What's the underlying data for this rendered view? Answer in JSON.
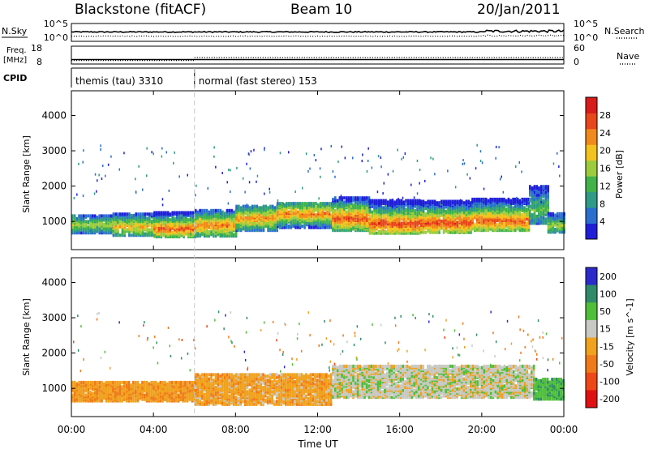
{
  "header": {
    "station": "Blackstone (fitACF)",
    "beam": "Beam 10",
    "date": "20/Jan/2011"
  },
  "chart_data": [
    {
      "type": "line",
      "panel": "noise",
      "left_label": "N.Sky",
      "right_label": "N.Search",
      "y_left_ticks": [
        "10^5",
        "10^0"
      ],
      "y_right_ticks": [
        "10^5",
        "10^0"
      ],
      "series": [
        {
          "name": "N.Sky",
          "style": "solid"
        },
        {
          "name": "N.Search",
          "style": "dotted"
        }
      ]
    },
    {
      "type": "line",
      "panel": "frequency",
      "left_label_line1": "Freq.",
      "left_label_line2": "[MHz]",
      "right_label": "Nave",
      "y_left_ticks": [
        "18",
        "8"
      ],
      "y_right_ticks": [
        "60",
        "0"
      ],
      "series": [
        {
          "name": "Freq.",
          "style": "solid",
          "segments": [
            {
              "x": [
                "00:00",
                "24:00"
              ],
              "y": 10.5
            }
          ]
        },
        {
          "name": "Nave",
          "style": "dotted",
          "segments": [
            {
              "x": [
                "00:00",
                "06:00"
              ],
              "y": 12
            },
            {
              "x": [
                "06:00",
                "24:00"
              ],
              "y": 22
            }
          ]
        }
      ]
    },
    {
      "type": "table",
      "panel": "cpid",
      "label": "CPID",
      "programs": [
        {
          "name": "themis (tau) 3310",
          "start": "00:00"
        },
        {
          "name": "normal (fast stereo) 153",
          "start": "06:00"
        }
      ]
    },
    {
      "type": "heatmap",
      "panel": "power",
      "ylabel": "Slant Range [km]",
      "y_ticks": [
        1000,
        2000,
        3000,
        4000
      ],
      "ylim": [
        200,
        4700
      ],
      "colorbar_label": "Power [dB]",
      "colorbar_ticks": [
        4,
        8,
        12,
        16,
        20,
        24,
        28
      ],
      "colorbar_range": [
        0,
        32
      ],
      "colorscale": [
        "#1f1fd8",
        "#2a6fd0",
        "#2f9a86",
        "#3fb34a",
        "#9ccc3c",
        "#f4c21f",
        "#f08a1c",
        "#e8461b",
        "#d81b1b"
      ],
      "scatter_bands": [
        {
          "t": [
            0.0,
            2.0
          ],
          "lo": 630,
          "hi": 1150,
          "core": 870,
          "peak": 17
        },
        {
          "t": [
            2.0,
            4.0
          ],
          "lo": 560,
          "hi": 1200,
          "core": 820,
          "peak": 22
        },
        {
          "t": [
            4.0,
            6.0
          ],
          "lo": 520,
          "hi": 1230,
          "core": 760,
          "peak": 27
        },
        {
          "t": [
            6.0,
            8.0
          ],
          "lo": 540,
          "hi": 1300,
          "core": 850,
          "peak": 25
        },
        {
          "t": [
            8.0,
            10.0
          ],
          "lo": 700,
          "hi": 1420,
          "core": 1050,
          "peak": 25
        },
        {
          "t": [
            10.0,
            12.7
          ],
          "lo": 780,
          "hi": 1480,
          "core": 1180,
          "peak": 25
        },
        {
          "t": [
            12.7,
            14.5
          ],
          "lo": 700,
          "hi": 1650,
          "core": 1050,
          "peak": 28
        },
        {
          "t": [
            14.5,
            17.0
          ],
          "lo": 620,
          "hi": 1550,
          "core": 900,
          "peak": 29
        },
        {
          "t": [
            17.0,
            19.5
          ],
          "lo": 640,
          "hi": 1550,
          "core": 920,
          "peak": 29
        },
        {
          "t": [
            19.5,
            22.3
          ],
          "lo": 700,
          "hi": 1620,
          "core": 980,
          "peak": 27
        },
        {
          "t": [
            22.3,
            23.2
          ],
          "lo": 900,
          "hi": 1950,
          "core": 1300,
          "peak": 13
        },
        {
          "t": [
            23.2,
            24.0
          ],
          "lo": 650,
          "hi": 1200,
          "core": 850,
          "peak": 17
        }
      ]
    },
    {
      "type": "heatmap",
      "panel": "velocity",
      "ylabel": "Slant Range [km]",
      "y_ticks": [
        1000,
        2000,
        3000,
        4000
      ],
      "ylim": [
        200,
        4700
      ],
      "xlabel": "Time UT",
      "x_ticks": [
        "00:00",
        "04:00",
        "08:00",
        "12:00",
        "16:00",
        "20:00",
        "00:00"
      ],
      "xlim_hours": [
        0,
        24
      ],
      "colorbar_label": "Velocity [m s^-1]",
      "colorbar_ticks": [
        "200",
        "100",
        "50",
        "15",
        "-15",
        "-50",
        "-100",
        "-200"
      ],
      "colorscale": [
        "#2b2bcc",
        "#2f8a6a",
        "#4fbf3a",
        "#8fd64a",
        "#c8c8c4",
        "#f0a21e",
        "#f07a1a",
        "#ee4818",
        "#e01010"
      ],
      "scatter_bands": [
        {
          "t": [
            0.0,
            6.0
          ],
          "lo": 600,
          "hi": 1150,
          "velocity": -40
        },
        {
          "t": [
            6.0,
            12.7
          ],
          "lo": 500,
          "hi": 1350,
          "velocity": -35
        },
        {
          "t": [
            12.7,
            22.5
          ],
          "lo": 700,
          "hi": 1600,
          "velocity": 0
        },
        {
          "t": [
            22.5,
            24.0
          ],
          "lo": 650,
          "hi": 1250,
          "velocity": 40
        }
      ]
    }
  ]
}
